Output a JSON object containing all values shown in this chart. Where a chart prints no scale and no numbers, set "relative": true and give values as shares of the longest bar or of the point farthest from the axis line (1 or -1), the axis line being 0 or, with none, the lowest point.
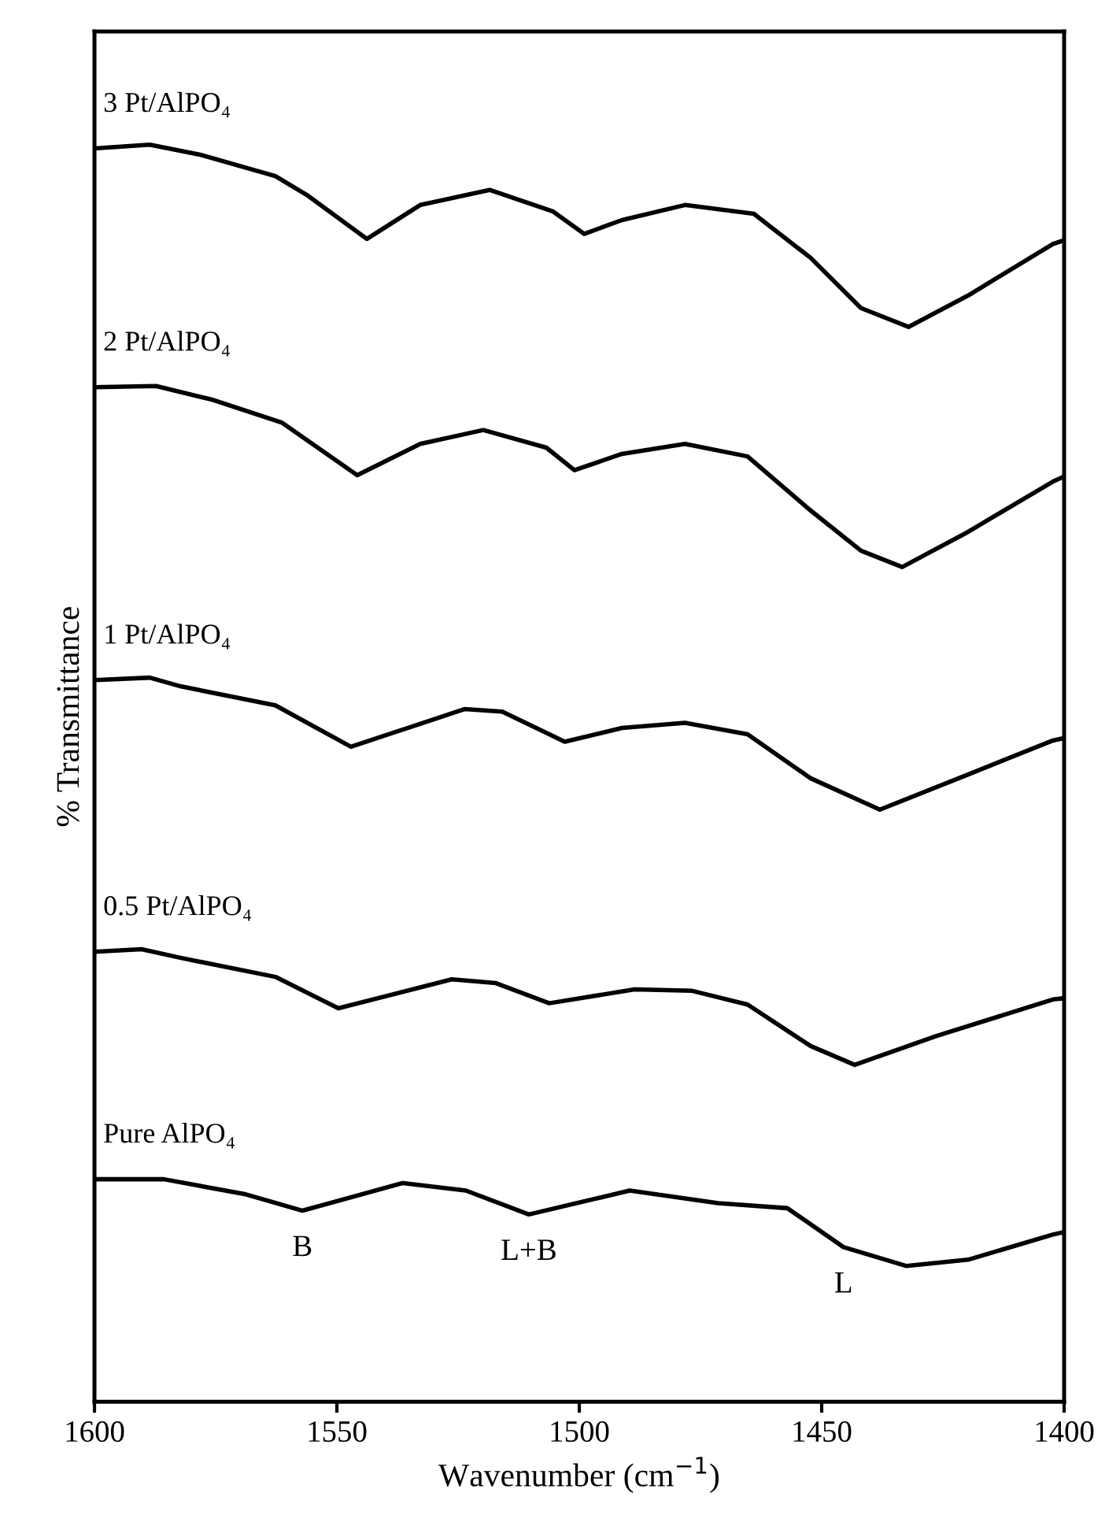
{
  "chart_data": {
    "type": "line",
    "relative": true,
    "xlabel": "Wavenumber (cm$^{−1}$)",
    "ylabel": "% Transmittance",
    "xlim": [
      1600,
      1400
    ],
    "xticks": [
      1600,
      1550,
      1500,
      1450,
      1400
    ],
    "legend": false,
    "grid": false,
    "marker": "none",
    "line_style": "solid",
    "series": [
      {
        "name": "3 Pt/AlPO₄",
        "color": "#000000",
        "x": [
          1600,
          1588.6,
          1578.2,
          1562.7,
          1556.2,
          1543.8,
          1532.8,
          1518.5,
          1505.5,
          1499,
          1491.2,
          1478.2,
          1464,
          1452.3,
          1441.9,
          1432.1,
          1419.8,
          1402.3,
          1400
        ],
        "values": [
          0.997,
          1.0,
          0.992,
          0.975,
          0.96,
          0.925,
          0.952,
          0.964,
          0.947,
          0.929,
          0.94,
          0.952,
          0.945,
          0.91,
          0.87,
          0.855,
          0.88,
          0.921,
          0.924
        ]
      },
      {
        "name": "2 Pt/AlPO₄",
        "color": "#000000",
        "x": [
          1600,
          1587.3,
          1575.6,
          1561.4,
          1545.8,
          1532.8,
          1519.8,
          1506.8,
          1501,
          1491.2,
          1478.2,
          1465.3,
          1452.3,
          1441.9,
          1433.4,
          1419.8,
          1402.3,
          1400
        ],
        "values": [
          0.807,
          0.808,
          0.797,
          0.779,
          0.737,
          0.762,
          0.773,
          0.759,
          0.741,
          0.754,
          0.762,
          0.752,
          0.709,
          0.677,
          0.664,
          0.692,
          0.732,
          0.736
        ]
      },
      {
        "name": "1 Pt/AlPO₄",
        "color": "#000000",
        "x": [
          1600,
          1588.6,
          1582.1,
          1562.7,
          1547.1,
          1523.7,
          1515.9,
          1503,
          1491.2,
          1478.2,
          1465.3,
          1452.3,
          1438,
          1419.8,
          1402.3,
          1400
        ],
        "values": [
          0.574,
          0.576,
          0.569,
          0.554,
          0.521,
          0.551,
          0.549,
          0.525,
          0.536,
          0.54,
          0.531,
          0.496,
          0.471,
          0.499,
          0.526,
          0.528
        ]
      },
      {
        "name": "0.5 Pt/AlPO₄",
        "color": "#000000",
        "x": [
          1600,
          1590.3,
          1582.1,
          1562.7,
          1549.7,
          1526.3,
          1517.2,
          1506.2,
          1488.6,
          1476.9,
          1465.3,
          1452.3,
          1443.2,
          1426.3,
          1402.3,
          1400
        ],
        "values": [
          0.358,
          0.36,
          0.353,
          0.338,
          0.313,
          0.336,
          0.333,
          0.317,
          0.328,
          0.327,
          0.316,
          0.283,
          0.268,
          0.291,
          0.32,
          0.321
        ]
      },
      {
        "name": "Pure AlPO₄",
        "color": "#000000",
        "x": [
          1600,
          1585.7,
          1568.8,
          1557.1,
          1536.4,
          1523.4,
          1510.4,
          1489.6,
          1471.4,
          1457.1,
          1445.5,
          1432.5,
          1419.8,
          1402.3,
          1400
        ],
        "values": [
          0.177,
          0.177,
          0.165,
          0.152,
          0.174,
          0.168,
          0.149,
          0.168,
          0.158,
          0.154,
          0.123,
          0.108,
          0.113,
          0.133,
          0.135
        ]
      }
    ],
    "annotations": [
      {
        "text": "B",
        "x": 1557.1,
        "y": 0.152
      },
      {
        "text": "L+B",
        "x": 1510.4,
        "y": 0.149
      },
      {
        "text": "L",
        "x": 1445.5,
        "y": 0.123
      }
    ]
  }
}
